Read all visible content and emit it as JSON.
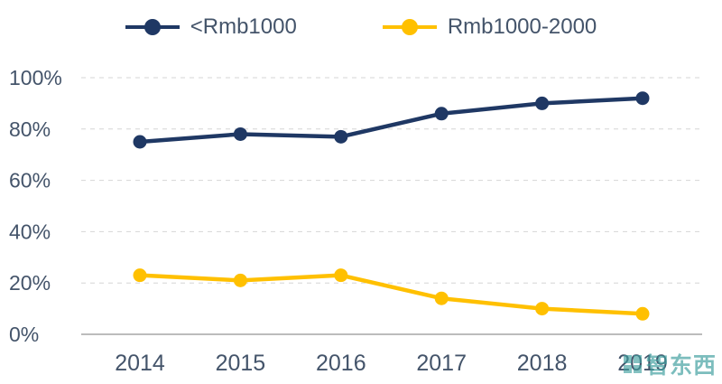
{
  "watermark": {
    "text": "智东西"
  },
  "chart_data": {
    "type": "line",
    "title": "",
    "x": [
      "2014",
      "2015",
      "2016",
      "2017",
      "2018",
      "2019"
    ],
    "series": [
      {
        "name": "<Rmb1000",
        "color": "#1F3864",
        "values": [
          75,
          78,
          77,
          86,
          90,
          92
        ]
      },
      {
        "name": "Rmb1000-2000",
        "color": "#FFC000",
        "values": [
          23,
          21,
          23,
          14,
          10,
          8
        ]
      }
    ],
    "ylim": [
      0,
      100
    ],
    "yticks": [
      0,
      20,
      40,
      60,
      80,
      100
    ],
    "ytick_labels": [
      "0%",
      "20%",
      "40%",
      "60%",
      "80%",
      "100%"
    ],
    "ytick_format": "percent",
    "grid": "horizontal-dashed",
    "legend_position": "top",
    "colors": {
      "axis_text": "#44546A",
      "gridline": "#D6D6D6",
      "axis_line": "#A6A6A6"
    }
  }
}
